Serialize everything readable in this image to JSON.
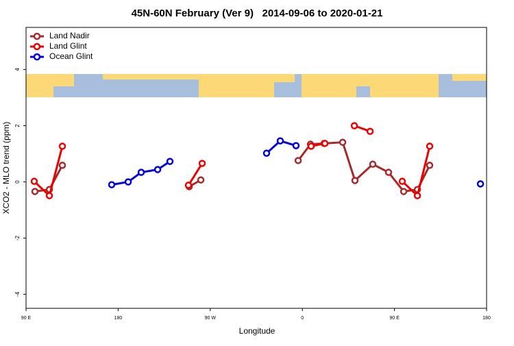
{
  "chart_data": {
    "type": "line",
    "title": "45N-60N February (Ver 9)   2014-09-06 to 2020-01-21",
    "xlabel": "Longitude",
    "ylabel": "XCO2 - MLO trend (ppm)",
    "xlim": [
      90,
      540
    ],
    "xticks": [
      {
        "value": 90,
        "label": "90 E"
      },
      180,
      {
        "value": 270,
        "label": "90 W"
      },
      {
        "value": 360,
        "label": "0"
      },
      {
        "value": 450,
        "label": "90 E"
      },
      {
        "value": 540,
        "label": "180"
      }
    ],
    "ylim": [
      -4.5,
      5.5
    ],
    "yticks": [
      -4,
      -2,
      0,
      2,
      4
    ],
    "legend": "upper left",
    "series": [
      {
        "name": "Land Nadir",
        "color": "#a52a2a",
        "x": [
          98.7,
          112.8,
          125.5,
          null,
          249.4,
          260.8,
          null,
          355.9,
          367.9,
          381.3,
          399.4,
          411.4,
          428.8,
          444.2,
          459,
          472.4,
          484.4
        ],
        "values": [
          -0.34,
          -0.27,
          0.59,
          null,
          -0.17,
          0.07,
          null,
          0.76,
          1.34,
          1.37,
          1.41,
          0.05,
          0.63,
          0.34,
          -0.34,
          -0.27,
          0.59
        ]
      },
      {
        "name": "Land Glint",
        "color": "#ee0000",
        "x": [
          98,
          112.8,
          125.5,
          null,
          248.7,
          262.1,
          null,
          368.6,
          382,
          null,
          410.8,
          426.2,
          null,
          457.6,
          472.4,
          484.4
        ],
        "values": [
          0.02,
          -0.49,
          1.27,
          null,
          -0.12,
          0.66,
          null,
          1.27,
          1.37,
          null,
          2.0,
          1.8,
          null,
          0.02,
          -0.49,
          1.27
        ]
      },
      {
        "name": "Ocean Glint",
        "color": "#0000dd",
        "x": [
          173.7,
          189.8,
          202.5,
          218.6,
          230.6,
          null,
          325,
          338.4,
          353.8,
          null,
          534
        ],
        "values": [
          -0.1,
          0,
          0.34,
          0.44,
          0.73,
          null,
          1.02,
          1.46,
          1.29,
          null,
          -0.07
        ]
      }
    ]
  }
}
